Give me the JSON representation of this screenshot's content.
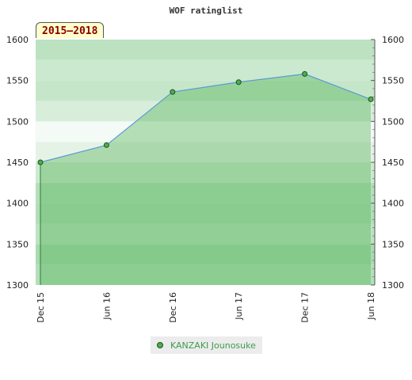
{
  "chart_data": {
    "type": "area",
    "title": "WOF ratinglist",
    "period_label": "2015–2018",
    "categories": [
      "Dec 15",
      "Jun 16",
      "Dec 16",
      "Jun 17",
      "Dec 17",
      "Jun 18"
    ],
    "series": [
      {
        "name": "KANZAKI Jounosuke",
        "values": [
          1450,
          1471,
          1536,
          1548,
          1558,
          1527
        ]
      }
    ],
    "ylim": [
      1300,
      1600
    ],
    "yticks": [
      1300,
      1350,
      1400,
      1450,
      1500,
      1550,
      1600
    ],
    "legend_position": "bottom",
    "colors": {
      "line": "#5b9bd5",
      "fill": "#4caf50",
      "marker_fill": "#4caf50",
      "marker_stroke": "#1f4f1f"
    }
  }
}
